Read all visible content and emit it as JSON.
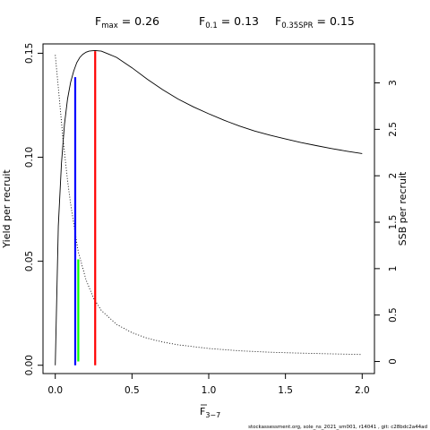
{
  "chart_data": {
    "type": "line",
    "title_parts": {
      "fmax": {
        "sub": "max",
        "value": "0.26"
      },
      "f01": {
        "sub": "0.1",
        "value": "0.13"
      },
      "fspr": {
        "sub": "0.35SPR",
        "value": "0.15"
      }
    },
    "xlabel": {
      "main": "F",
      "sub": "3−7"
    },
    "ylabel_left": "Yield per recruit",
    "ylabel_right": "SSB per recruit",
    "xlim": [
      -0.08,
      2.08
    ],
    "ylim_left": [
      -0.004,
      0.1545
    ],
    "ylim_right": [
      -0.13,
      3.42
    ],
    "x_ticks": [
      "0.0",
      "0.5",
      "1.0",
      "1.5",
      "2.0"
    ],
    "x_tick_values": [
      0,
      0.5,
      1.0,
      1.5,
      2.0
    ],
    "y_left_ticks": [
      "0.00",
      "0.05",
      "0.10",
      "0.15"
    ],
    "y_left_tick_values": [
      0,
      0.05,
      0.1,
      0.15
    ],
    "y_right_ticks": [
      "0",
      "0.5",
      "1",
      "1.5",
      "2",
      "2.5",
      "3"
    ],
    "y_right_tick_values": [
      0,
      0.5,
      1,
      1.5,
      2,
      2.5,
      3
    ],
    "series": [
      {
        "name": "Yield per recruit",
        "axis": "left",
        "style": "solid",
        "x": [
          0,
          0.02,
          0.04,
          0.06,
          0.08,
          0.1,
          0.12,
          0.14,
          0.16,
          0.18,
          0.2,
          0.22,
          0.24,
          0.26,
          0.3,
          0.35,
          0.4,
          0.5,
          0.6,
          0.7,
          0.8,
          0.9,
          1.0,
          1.1,
          1.2,
          1.3,
          1.4,
          1.5,
          1.6,
          1.7,
          1.8,
          1.9,
          2.0
        ],
        "y": [
          0,
          0.067,
          0.097,
          0.116,
          0.128,
          0.136,
          0.1415,
          0.1455,
          0.148,
          0.1495,
          0.1505,
          0.151,
          0.1512,
          0.1513,
          0.151,
          0.1495,
          0.148,
          0.143,
          0.1375,
          0.1325,
          0.128,
          0.1242,
          0.1209,
          0.1178,
          0.115,
          0.1126,
          0.1106,
          0.1088,
          0.1071,
          0.1056,
          0.1042,
          0.1029,
          0.1018
        ]
      },
      {
        "name": "SSB per recruit",
        "axis": "right",
        "style": "dotted",
        "x": [
          0,
          0.02,
          0.05,
          0.08,
          0.1,
          0.13,
          0.15,
          0.2,
          0.25,
          0.3,
          0.4,
          0.5,
          0.6,
          0.7,
          0.8,
          1.0,
          1.2,
          1.4,
          1.6,
          1.8,
          2.0
        ],
        "y": [
          3.3,
          2.95,
          2.4,
          1.95,
          1.7,
          1.38,
          1.18,
          0.88,
          0.68,
          0.55,
          0.4,
          0.31,
          0.25,
          0.21,
          0.18,
          0.14,
          0.115,
          0.1,
          0.09,
          0.082,
          0.075
        ]
      }
    ],
    "reference_lines": [
      {
        "name": "F0.1",
        "x": 0.13,
        "y_from": 0,
        "y_to": 0.1385,
        "axis": "left",
        "color": "#0000ff"
      },
      {
        "name": "F0.35SPR",
        "x": 0.15,
        "y_from": 0,
        "y_to": 1.1,
        "axis": "right",
        "color": "#00ff00"
      },
      {
        "name": "Fmax",
        "x": 0.26,
        "y_from": 0,
        "y_to": 0.151,
        "axis": "left",
        "color": "#ff0000"
      }
    ],
    "grid": false,
    "legend": "none"
  },
  "footer": "stockassessment.org, sole_ns_2021_sm001, r14041 , git: c28bdc2a44ad"
}
